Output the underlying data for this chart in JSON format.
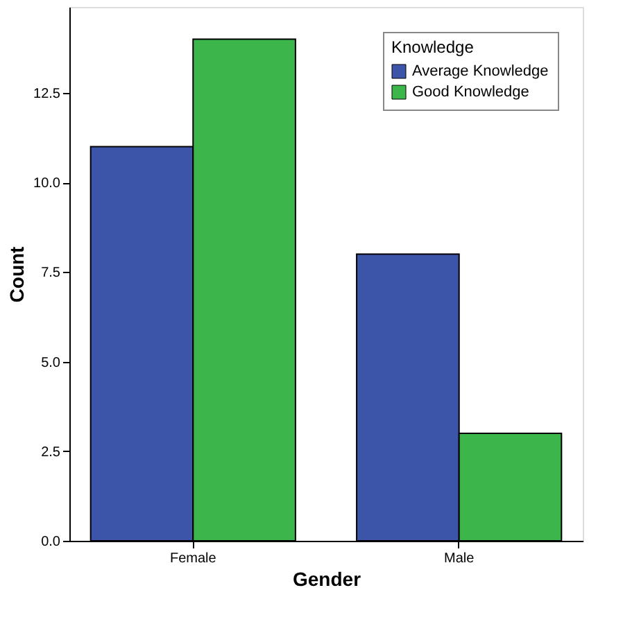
{
  "chart_data": {
    "type": "bar",
    "xlabel": "Gender",
    "ylabel": "Count",
    "legend_title": "Knowledge",
    "legend": "top right",
    "grid": false,
    "categories": [
      "Female",
      "Male"
    ],
    "series": [
      {
        "name": "Average Knowledge",
        "color": "#3c55a8",
        "values": [
          11,
          8
        ]
      },
      {
        "name": "Good Knowledge",
        "color": "#3cb54a",
        "values": [
          14,
          3
        ]
      }
    ],
    "ylim": [
      0,
      14.9
    ],
    "yticks": [
      {
        "value": 0,
        "label": "0.0"
      },
      {
        "value": 2.5,
        "label": "2.5"
      },
      {
        "value": 5,
        "label": "5.0"
      },
      {
        "value": 7.5,
        "label": "7.5"
      },
      {
        "value": 10,
        "label": "10.0"
      },
      {
        "value": 12.5,
        "label": "12.5"
      }
    ]
  }
}
